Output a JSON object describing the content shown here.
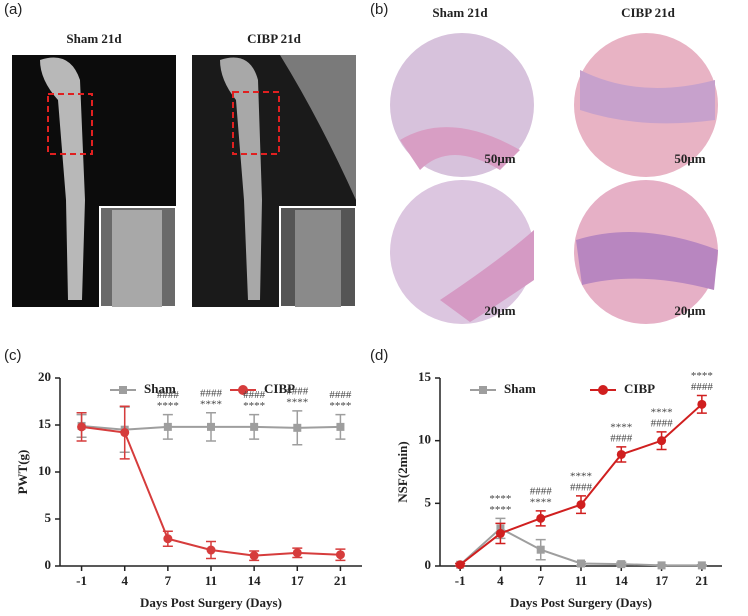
{
  "panels": {
    "a": {
      "label": "(a)",
      "images": [
        "Sham 21d",
        "CIBP 21d"
      ]
    },
    "b": {
      "label": "(b)",
      "columns": [
        "Sham 21d",
        "CIBP 21d"
      ],
      "scale_bars": [
        "50μm",
        "50μm",
        "20μm",
        "20μm"
      ]
    }
  },
  "chart_data": [
    {
      "type": "line",
      "label": "(c)",
      "y_label": "PWT(g)",
      "x_label": "Days Post Surgery (Days)",
      "categories": [
        "-1",
        "4",
        "7",
        "11",
        "14",
        "17",
        "21"
      ],
      "ylim": [
        0,
        20
      ],
      "yticks": [
        0,
        5,
        10,
        15,
        20
      ],
      "series": [
        {
          "name": "Sham",
          "color": "#9e9e9e",
          "marker": "square",
          "values": [
            14.9,
            14.5,
            14.8,
            14.8,
            14.8,
            14.7,
            14.8
          ],
          "errors": [
            1.2,
            2.4,
            1.3,
            1.5,
            1.3,
            1.8,
            1.3
          ]
        },
        {
          "name": "CIBP",
          "color": "#d63c3c",
          "marker": "circle",
          "values": [
            14.8,
            14.2,
            2.9,
            1.7,
            1.1,
            1.4,
            1.2
          ],
          "errors": [
            1.5,
            2.8,
            0.8,
            0.9,
            0.5,
            0.5,
            0.6
          ]
        }
      ],
      "annotations": [
        null,
        null,
        [
          "####",
          "****"
        ],
        [
          "####",
          "****"
        ],
        [
          "####",
          "****"
        ],
        [
          "####",
          "****"
        ],
        [
          "####",
          "****"
        ]
      ]
    },
    {
      "type": "line",
      "label": "(d)",
      "y_label": "NSF(2min)",
      "x_label": "Days Post Surgery (Days)",
      "categories": [
        "-1",
        "4",
        "7",
        "11",
        "14",
        "17",
        "21"
      ],
      "ylim": [
        0,
        15
      ],
      "yticks": [
        0,
        5,
        10,
        15
      ],
      "series": [
        {
          "name": "Sham",
          "color": "#9e9e9e",
          "marker": "square",
          "values": [
            0.1,
            3.0,
            1.3,
            0.2,
            0.15,
            0.05,
            0.05
          ],
          "errors": [
            0.1,
            0.8,
            0.8,
            0.15,
            0.15,
            0.05,
            0.05
          ]
        },
        {
          "name": "CIBP",
          "color": "#d01f1f",
          "marker": "circle",
          "values": [
            0.1,
            2.6,
            3.8,
            4.9,
            8.9,
            10.0,
            12.9
          ],
          "errors": [
            0.1,
            0.8,
            0.6,
            0.7,
            0.6,
            0.7,
            0.7
          ]
        }
      ],
      "annotations": [
        null,
        [
          "****",
          "****"
        ],
        [
          "####",
          "****"
        ],
        [
          "****",
          "####"
        ],
        [
          "****",
          "####"
        ],
        [
          "****",
          "####"
        ],
        [
          "****",
          "####"
        ]
      ]
    }
  ]
}
